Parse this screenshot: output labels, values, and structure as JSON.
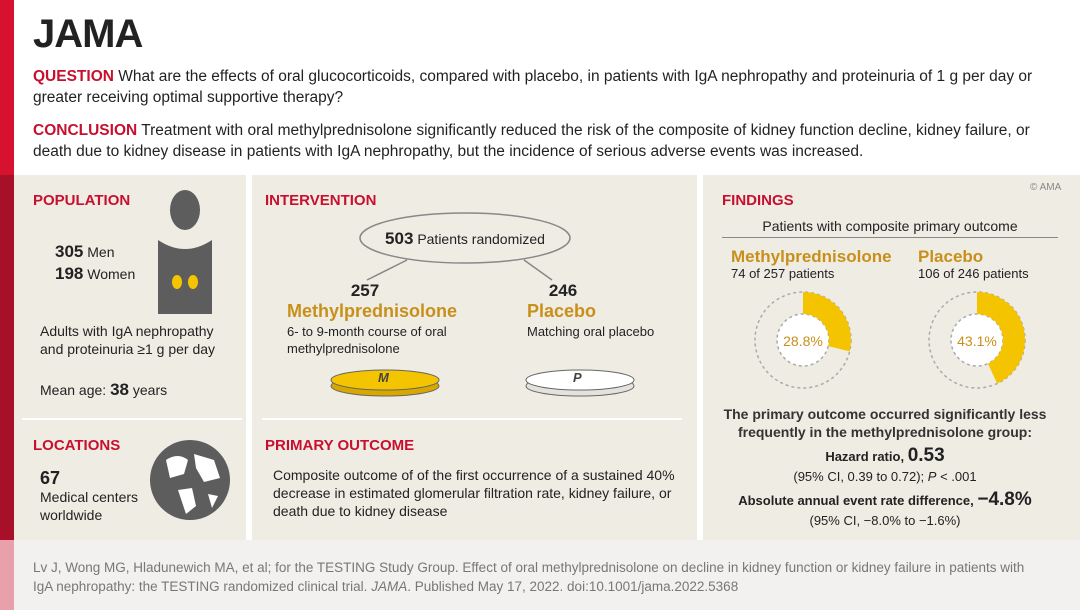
{
  "header": {
    "logo": "JAMA",
    "copyright": "© AMA"
  },
  "question": {
    "label": "QUESTION",
    "text": "What are the effects of oral glucocorticoids, compared with placebo, in patients with IgA nephropathy and proteinuria of 1 g per day or greater receiving optimal supportive therapy?"
  },
  "conclusion": {
    "label": "CONCLUSION",
    "text": "Treatment with oral methylprednisolone significantly reduced the risk of the composite of kidney function decline, kidney failure, or death due to kidney disease in patients with IgA nephropathy, but the incidence of serious adverse events was increased."
  },
  "population": {
    "title": "POPULATION",
    "men": {
      "count": 305,
      "label": "Men"
    },
    "women": {
      "count": 198,
      "label": "Women"
    },
    "description": "Adults with IgA nephropathy and proteinuria ≥1 g per day",
    "mean_age": {
      "label": "Mean age:",
      "value": 38,
      "unit": "years"
    }
  },
  "locations": {
    "title": "LOCATIONS",
    "count": 67,
    "text": "Medical centers worldwide"
  },
  "intervention": {
    "title": "INTERVENTION",
    "randomized": {
      "count": 503,
      "label": "Patients randomized"
    },
    "arms": [
      {
        "count": 257,
        "name": "Methylprednisolone",
        "description": "6- to 9-month course of oral methylprednisolone",
        "pill": "M"
      },
      {
        "count": 246,
        "name": "Placebo",
        "description": "Matching oral placebo",
        "pill": "P"
      }
    ]
  },
  "primary_outcome": {
    "title": "PRIMARY OUTCOME",
    "text": "Composite outcome of of the first occurrence of a sustained 40% decrease in estimated glomerular filtration rate, kidney failure, or death due to kidney disease"
  },
  "findings": {
    "title": "FINDINGS",
    "subtitle": "Patients with composite primary outcome",
    "groups": [
      {
        "name": "Methylprednisolone",
        "summary": "74 of 257 patients",
        "percent": {
          "value": 28.8,
          "label": "28.8%"
        }
      },
      {
        "name": "Placebo",
        "summary": "106 of 246 patients",
        "percent": {
          "value": 43.1,
          "label": "43.1%"
        }
      }
    ],
    "statement": "The primary outcome occurred significantly less frequently in the methylprednisolone group:",
    "hazard_ratio": {
      "label": "Hazard ratio,",
      "value": "0.53",
      "ci": "(95% CI, 0.39 to 0.72);",
      "p_label": "P",
      "p_text": "< .001"
    },
    "rate_difference": {
      "label": "Absolute annual event rate difference,",
      "value": "−4.8%",
      "ci": "(95% CI, −8.0%  to −1.6%)"
    }
  },
  "citation": {
    "text": "Lv J, Wong MG, Hladunewich MA, et al; for the TESTING Study Group. Effect of oral methylprednisolone on decline in kidney function or kidney failure in patients with IgA nephropathy: the TESTING randomized clinical trial.",
    "journal": "JAMA",
    "published": ". Published May 17, 2022. doi:10.1001/jama.2022.5368"
  }
}
